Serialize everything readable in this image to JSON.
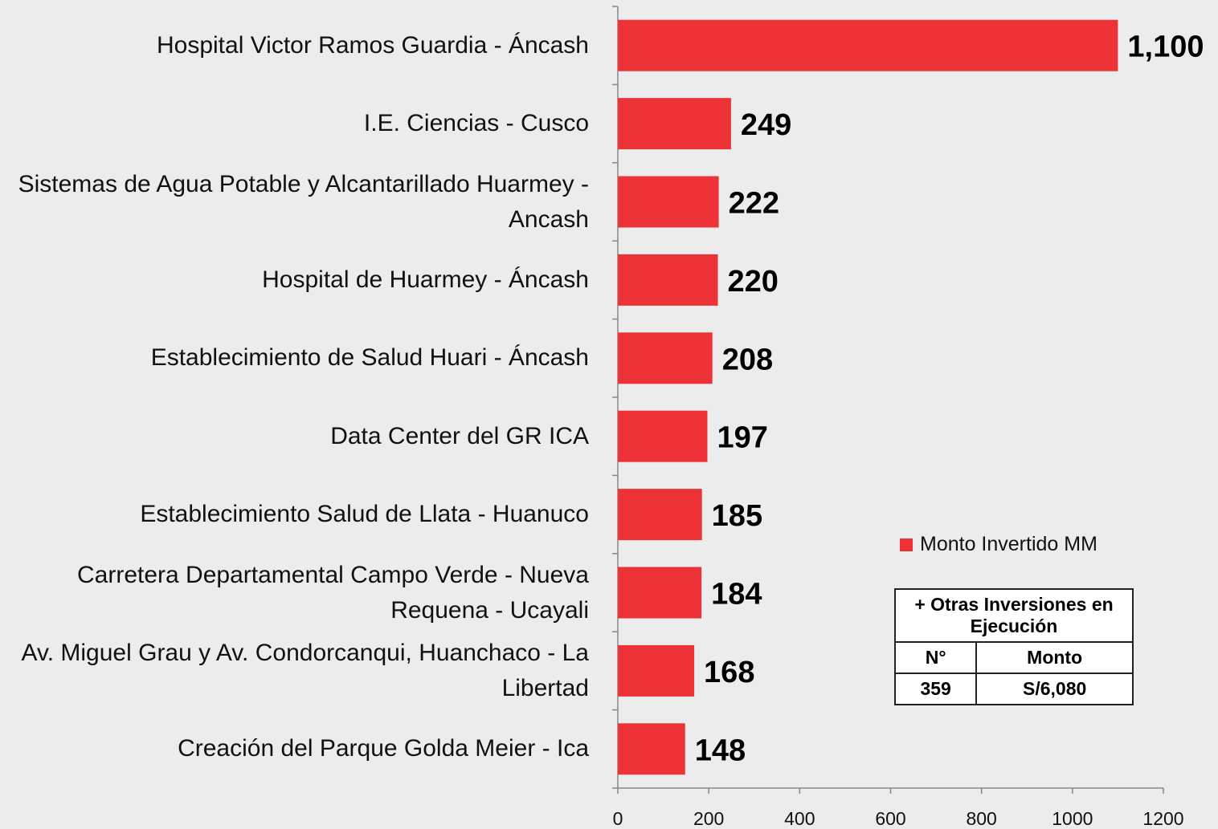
{
  "chart_data": {
    "type": "bar",
    "orientation": "horizontal",
    "categories": [
      "Hospital Victor Ramos Guardia - Áncash",
      "I.E. Ciencias - Cusco",
      "Sistemas de Agua Potable y Alcantarillado Huarmey - Ancash",
      "Hospital de Huarmey - Áncash",
      "Establecimiento de Salud Huari - Áncash",
      "Data Center del GR ICA",
      "Establecimiento Salud de Llata - Huanuco",
      "Carretera Departamental Campo Verde - Nueva Requena - Ucayali",
      "Av. Miguel Grau y Av. Condorcanqui, Huanchaco - La Libertad",
      "Creación del Parque Golda Meier - Ica"
    ],
    "series": [
      {
        "name": "Monto Invertido MM",
        "color": "#ee3338",
        "values": [
          1100,
          249,
          222,
          220,
          208,
          197,
          185,
          184,
          168,
          148
        ],
        "value_labels": [
          "1,100",
          "249",
          "222",
          "220",
          "208",
          "197",
          "185",
          "184",
          "168",
          "148"
        ]
      }
    ],
    "xlim": [
      0,
      1200
    ],
    "xticks": [
      0,
      200,
      400,
      600,
      800,
      1000,
      1200
    ],
    "legend": "right",
    "table": {
      "title": "+ Otras Inversiones en Ejecución",
      "headers": [
        "N°",
        "Monto"
      ],
      "rows": [
        [
          "359",
          "S/6,080"
        ]
      ]
    }
  }
}
